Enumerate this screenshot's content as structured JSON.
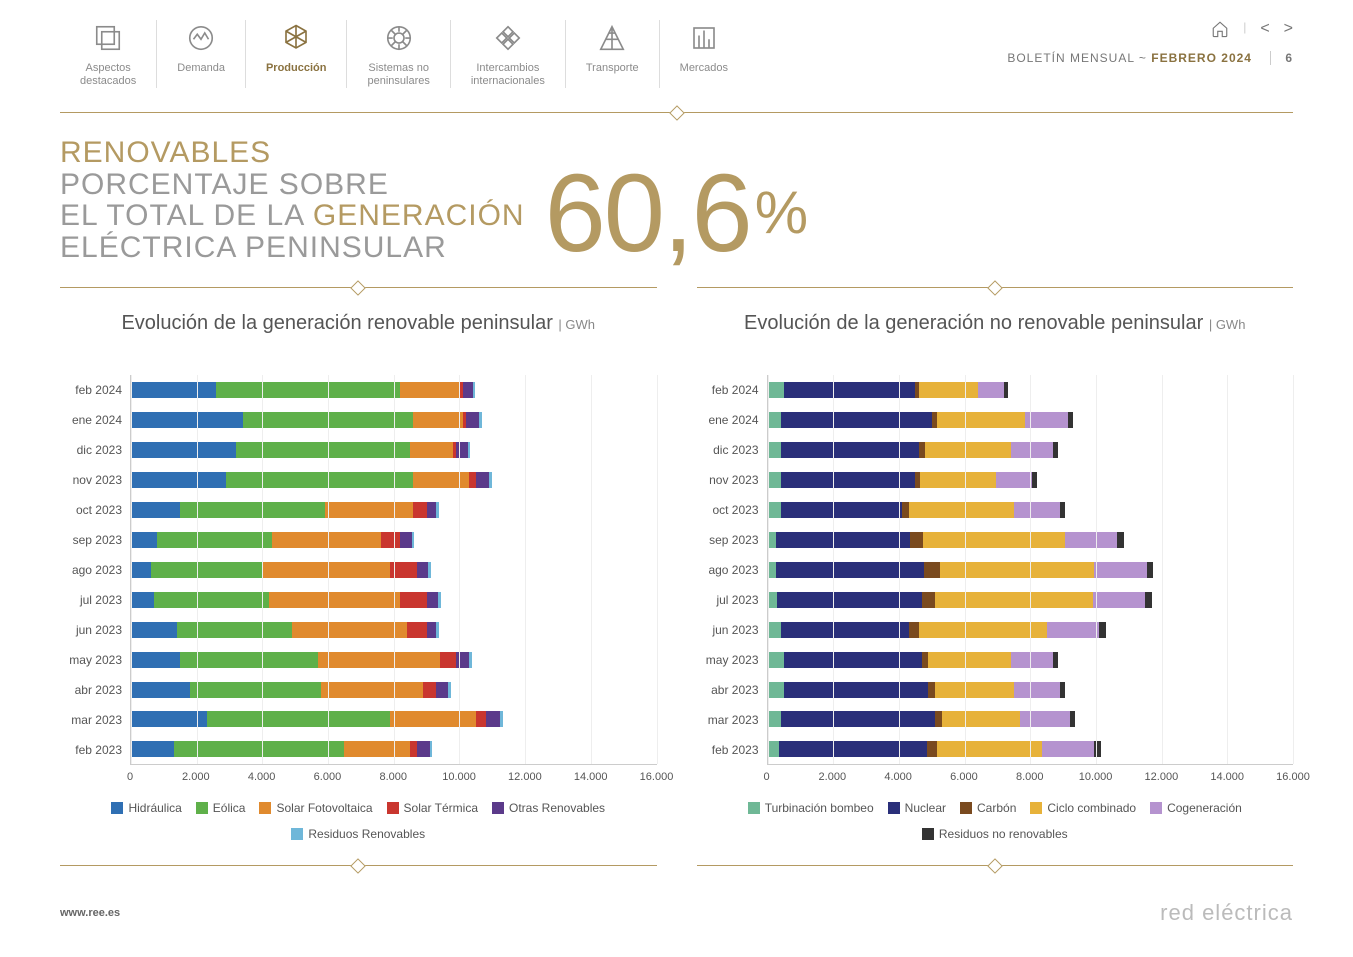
{
  "nav": {
    "tabs": [
      {
        "label": "Aspectos\ndestacados",
        "active": false
      },
      {
        "label": "Demanda",
        "active": false
      },
      {
        "label": "Producción",
        "active": true
      },
      {
        "label": "Sistemas no\npeninsulares",
        "active": false
      },
      {
        "label": "Intercambios\ninternacionales",
        "active": false
      },
      {
        "label": "Transporte",
        "active": false
      },
      {
        "label": "Mercados",
        "active": false
      }
    ],
    "boletin_label": "BOLETÍN MENSUAL  ~  ",
    "boletin_date": "FEBRERO 2024",
    "page_num": "6"
  },
  "headline": {
    "line1": "RENOVABLES",
    "line2a": "PORCENTAJE SOBRE",
    "line2b": "EL TOTAL DE LA ",
    "line2c": "GENERACIÓN",
    "line3": "ELÉCTRICA PENINSULAR",
    "value": "60,6",
    "pct": "%"
  },
  "axis": {
    "xmax": 16000,
    "xticks": [
      0,
      2000,
      4000,
      6000,
      8000,
      10000,
      12000,
      14000,
      16000
    ],
    "xlabels": [
      "0",
      "2.000",
      "4.000",
      "6.000",
      "8.000",
      "10.000",
      "12.000",
      "14.000",
      "16.000"
    ]
  },
  "months": [
    "feb 2024",
    "ene 2024",
    "dic 2023",
    "nov 2023",
    "oct 2023",
    "sep 2023",
    "ago 2023",
    "jul 2023",
    "jun 2023",
    "may 2023",
    "abr 2023",
    "mar 2023",
    "feb 2023"
  ],
  "chart_left": {
    "title": "Evolución de la generación renovable peninsular",
    "unit": "| GWh",
    "series": [
      {
        "name": "Hidráulica",
        "color": "#2f6fb3"
      },
      {
        "name": "Eólica",
        "color": "#5fb04a"
      },
      {
        "name": "Solar Fotovoltaica",
        "color": "#e08a2e"
      },
      {
        "name": "Solar Térmica",
        "color": "#c9362f"
      },
      {
        "name": "Otras Renovables",
        "color": "#5b3a8a"
      },
      {
        "name": "Residuos Renovables",
        "color": "#6fb7d9"
      }
    ],
    "data": [
      [
        2600,
        5600,
        1800,
        100,
        300,
        80
      ],
      [
        3400,
        5200,
        1500,
        100,
        400,
        80
      ],
      [
        3200,
        5300,
        1300,
        100,
        350,
        80
      ],
      [
        2900,
        5700,
        1700,
        200,
        400,
        80
      ],
      [
        1500,
        4400,
        2700,
        400,
        300,
        80
      ],
      [
        800,
        3500,
        3300,
        600,
        350,
        80
      ],
      [
        600,
        3400,
        3900,
        800,
        350,
        80
      ],
      [
        700,
        3500,
        4000,
        800,
        350,
        80
      ],
      [
        1400,
        3500,
        3500,
        600,
        300,
        80
      ],
      [
        1500,
        4200,
        3700,
        500,
        400,
        80
      ],
      [
        1800,
        4000,
        3100,
        400,
        350,
        80
      ],
      [
        2300,
        5600,
        2600,
        300,
        450,
        80
      ],
      [
        1300,
        5200,
        2000,
        200,
        400,
        80
      ]
    ]
  },
  "chart_right": {
    "title": "Evolución de la generación no renovable peninsular",
    "unit": "| GWh",
    "series": [
      {
        "name": "Turbinación bombeo",
        "color": "#6fb896"
      },
      {
        "name": "Nuclear",
        "color": "#2a2f7a"
      },
      {
        "name": "Carbón",
        "color": "#7a4a1f"
      },
      {
        "name": "Ciclo combinado",
        "color": "#e7b23a"
      },
      {
        "name": "Cogeneración",
        "color": "#b593cf"
      },
      {
        "name": "Residuos no renovables",
        "color": "#333333"
      }
    ],
    "data": [
      [
        500,
        4000,
        100,
        1800,
        800,
        120
      ],
      [
        400,
        4600,
        150,
        2700,
        1300,
        150
      ],
      [
        400,
        4200,
        200,
        2600,
        1300,
        150
      ],
      [
        400,
        4100,
        150,
        2300,
        1100,
        150
      ],
      [
        400,
        3700,
        200,
        3200,
        1400,
        150
      ],
      [
        250,
        4100,
        400,
        4300,
        1600,
        200
      ],
      [
        250,
        4500,
        500,
        4700,
        1600,
        200
      ],
      [
        300,
        4400,
        400,
        4800,
        1600,
        200
      ],
      [
        400,
        3900,
        300,
        3900,
        1600,
        200
      ],
      [
        500,
        4200,
        200,
        2500,
        1300,
        150
      ],
      [
        500,
        4400,
        200,
        2400,
        1400,
        150
      ],
      [
        400,
        4700,
        200,
        2400,
        1500,
        150
      ],
      [
        350,
        4500,
        300,
        3200,
        1600,
        200
      ]
    ]
  },
  "footer": {
    "url": "www.ree.es",
    "brand": "red eléctrica"
  }
}
